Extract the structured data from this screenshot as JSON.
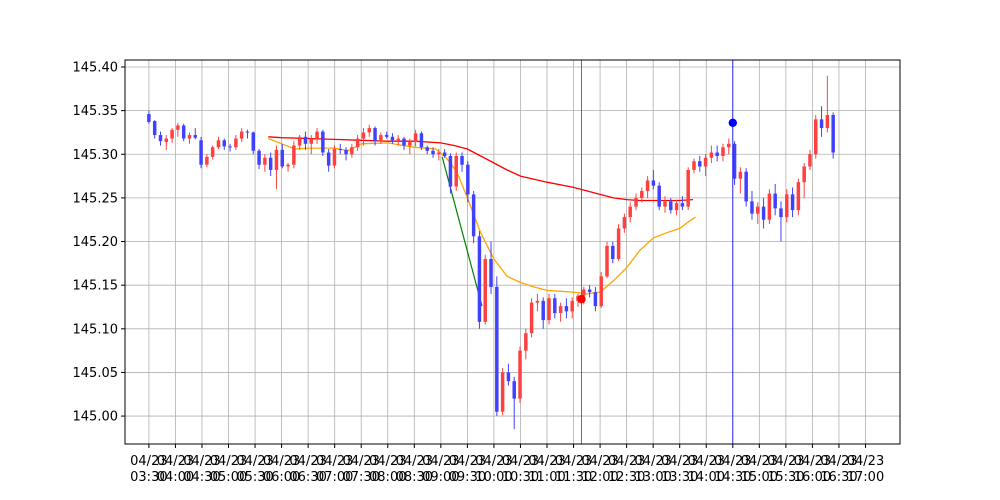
{
  "chart_data": {
    "type": "candlestick",
    "title": "",
    "xlabel": "",
    "ylabel": "",
    "grid": true,
    "ylim": [
      144.968,
      145.408
    ],
    "xlim": [
      -0.9,
      28.3
    ],
    "y_ticks": [
      {
        "value": 145.0,
        "label": "145.00"
      },
      {
        "value": 145.05,
        "label": "145.05"
      },
      {
        "value": 145.1,
        "label": "145.10"
      },
      {
        "value": 145.15,
        "label": "145.15"
      },
      {
        "value": 145.2,
        "label": "145.20"
      },
      {
        "value": 145.25,
        "label": "145.25"
      },
      {
        "value": 145.3,
        "label": "145.30"
      },
      {
        "value": 145.35,
        "label": "145.35"
      },
      {
        "value": 145.4,
        "label": "145.40"
      }
    ],
    "x_ticks": [
      {
        "date": "04/23",
        "time": "03:30"
      },
      {
        "date": "04/23",
        "time": "04:00"
      },
      {
        "date": "04/23",
        "time": "04:30"
      },
      {
        "date": "04/23",
        "time": "05:00"
      },
      {
        "date": "04/23",
        "time": "05:30"
      },
      {
        "date": "04/23",
        "time": "06:00"
      },
      {
        "date": "04/23",
        "time": "06:30"
      },
      {
        "date": "04/23",
        "time": "07:00"
      },
      {
        "date": "04/23",
        "time": "07:30"
      },
      {
        "date": "04/23",
        "time": "08:00"
      },
      {
        "date": "04/23",
        "time": "08:30"
      },
      {
        "date": "04/23",
        "time": "09:00"
      },
      {
        "date": "04/23",
        "time": "09:30"
      },
      {
        "date": "04/23",
        "time": "10:00"
      },
      {
        "date": "04/23",
        "time": "10:30"
      },
      {
        "date": "04/23",
        "time": "11:00"
      },
      {
        "date": "04/23",
        "time": "11:30"
      },
      {
        "date": "04/23",
        "time": "12:00"
      },
      {
        "date": "04/23",
        "time": "12:30"
      },
      {
        "date": "04/23",
        "time": "13:00"
      },
      {
        "date": "04/23",
        "time": "13:30"
      },
      {
        "date": "04/23",
        "time": "14:00"
      },
      {
        "date": "04/23",
        "time": "14:30"
      },
      {
        "date": "04/23",
        "time": "15:00"
      },
      {
        "date": "04/23",
        "time": "15:30"
      },
      {
        "date": "04/23",
        "time": "16:00"
      },
      {
        "date": "04/23",
        "time": "16:30"
      },
      {
        "date": "04/23",
        "time": "17:00"
      }
    ],
    "colors": {
      "up": "#ff4040",
      "down": "#4040ff",
      "ma_long": "#ff0000",
      "ma_short": "#ffa500",
      "trend": "#008000",
      "marker_red": "#ff0000",
      "marker_blue": "#0000ff",
      "vline_red": "#ff0000",
      "vline_blue": "#0000ff"
    },
    "candles": [
      [
        145.346,
        145.35,
        145.335,
        145.337
      ],
      [
        145.338,
        145.339,
        145.318,
        145.322
      ],
      [
        145.322,
        145.326,
        145.31,
        145.315
      ],
      [
        145.314,
        145.322,
        145.305,
        145.318
      ],
      [
        145.318,
        145.33,
        145.313,
        145.328
      ],
      [
        145.328,
        145.336,
        145.32,
        145.333
      ],
      [
        145.333,
        145.335,
        145.315,
        145.318
      ],
      [
        145.318,
        145.325,
        145.312,
        145.322
      ],
      [
        145.322,
        145.33,
        145.317,
        145.319
      ],
      [
        145.316,
        145.32,
        145.284,
        145.288
      ],
      [
        145.288,
        145.3,
        145.285,
        145.297
      ],
      [
        145.297,
        145.31,
        145.294,
        145.308
      ],
      [
        145.308,
        145.32,
        145.306,
        145.316
      ],
      [
        145.316,
        145.318,
        145.305,
        145.309
      ],
      [
        145.309,
        145.312,
        145.303,
        145.308
      ],
      [
        145.308,
        145.322,
        145.305,
        145.318
      ],
      [
        145.318,
        145.33,
        145.314,
        145.326
      ],
      [
        145.326,
        145.328,
        145.318,
        145.325
      ],
      [
        145.325,
        145.326,
        145.3,
        145.304
      ],
      [
        145.304,
        145.306,
        145.283,
        145.288
      ],
      [
        145.288,
        145.3,
        145.28,
        145.296
      ],
      [
        145.296,
        145.302,
        145.275,
        145.282
      ],
      [
        145.282,
        145.31,
        145.26,
        145.305
      ],
      [
        145.305,
        145.312,
        145.284,
        145.286
      ],
      [
        145.286,
        145.29,
        145.28,
        145.288
      ],
      [
        145.288,
        145.315,
        145.284,
        145.31
      ],
      [
        145.31,
        145.322,
        145.305,
        145.32
      ],
      [
        145.32,
        145.326,
        145.305,
        145.312
      ],
      [
        145.312,
        145.322,
        145.3,
        145.318
      ],
      [
        145.318,
        145.33,
        145.312,
        145.326
      ],
      [
        145.326,
        145.328,
        145.298,
        145.302
      ],
      [
        145.302,
        145.306,
        145.28,
        145.287
      ],
      [
        145.287,
        145.31,
        145.284,
        145.306
      ],
      [
        145.306,
        145.312,
        145.3,
        145.305
      ],
      [
        145.305,
        145.308,
        145.293,
        145.3
      ],
      [
        145.3,
        145.312,
        145.296,
        145.308
      ],
      [
        145.308,
        145.322,
        145.304,
        145.318
      ],
      [
        145.318,
        145.33,
        145.31,
        145.325
      ],
      [
        145.325,
        145.334,
        145.32,
        145.33
      ],
      [
        145.33,
        145.332,
        145.31,
        145.315
      ],
      [
        145.315,
        145.325,
        145.312,
        145.322
      ],
      [
        145.322,
        145.326,
        145.318,
        145.32
      ],
      [
        145.32,
        145.324,
        145.312,
        145.316
      ],
      [
        145.316,
        145.322,
        145.31,
        145.318
      ],
      [
        145.318,
        145.32,
        145.305,
        145.31
      ],
      [
        145.31,
        145.318,
        145.3,
        145.314
      ],
      [
        145.314,
        145.328,
        145.309,
        145.324
      ],
      [
        145.324,
        145.326,
        145.305,
        145.308
      ],
      [
        145.308,
        145.31,
        145.3,
        145.304
      ],
      [
        145.304,
        145.308,
        145.296,
        145.3
      ],
      [
        145.3,
        145.306,
        145.293,
        145.302
      ],
      [
        145.302,
        145.306,
        145.296,
        145.298
      ],
      [
        145.298,
        145.301,
        145.255,
        145.263
      ],
      [
        145.263,
        145.302,
        145.258,
        145.298
      ],
      [
        145.298,
        145.302,
        145.28,
        145.288
      ],
      [
        145.288,
        145.292,
        145.245,
        145.254
      ],
      [
        145.254,
        145.258,
        145.198,
        145.206
      ],
      [
        145.206,
        145.212,
        145.1,
        145.108
      ],
      [
        145.108,
        145.185,
        145.105,
        145.18
      ],
      [
        145.18,
        145.2,
        145.14,
        145.148
      ],
      [
        145.148,
        145.16,
        145.0,
        145.005
      ],
      [
        145.005,
        145.055,
        145.001,
        145.05
      ],
      [
        145.05,
        145.06,
        145.035,
        145.04
      ],
      [
        145.04,
        145.045,
        144.985,
        145.02
      ],
      [
        145.02,
        145.08,
        145.015,
        145.075
      ],
      [
        145.075,
        145.1,
        145.065,
        145.095
      ],
      [
        145.095,
        145.135,
        145.09,
        145.13
      ],
      [
        145.13,
        145.14,
        145.12,
        145.132
      ],
      [
        145.132,
        145.136,
        145.1,
        145.11
      ],
      [
        145.11,
        145.14,
        145.105,
        145.135
      ],
      [
        145.135,
        145.14,
        145.112,
        145.118
      ],
      [
        145.118,
        145.13,
        145.108,
        145.126
      ],
      [
        145.126,
        145.135,
        145.112,
        145.12
      ],
      [
        145.12,
        145.136,
        145.112,
        145.132
      ],
      [
        145.132,
        145.14,
        145.125,
        145.138
      ],
      [
        145.138,
        145.148,
        145.128,
        145.145
      ],
      [
        145.145,
        145.15,
        145.136,
        145.142
      ],
      [
        145.142,
        145.148,
        145.12,
        145.126
      ],
      [
        145.126,
        145.165,
        145.124,
        145.16
      ],
      [
        145.16,
        145.2,
        145.158,
        145.195
      ],
      [
        145.195,
        145.2,
        145.175,
        145.18
      ],
      [
        145.18,
        145.22,
        145.178,
        145.215
      ],
      [
        145.215,
        145.232,
        145.21,
        145.228
      ],
      [
        145.228,
        145.245,
        145.222,
        145.24
      ],
      [
        145.24,
        145.255,
        145.236,
        145.25
      ],
      [
        145.25,
        145.262,
        145.245,
        145.258
      ],
      [
        145.258,
        145.275,
        145.25,
        145.27
      ],
      [
        145.27,
        145.282,
        145.26,
        145.264
      ],
      [
        145.264,
        145.268,
        145.236,
        145.24
      ],
      [
        145.24,
        145.252,
        145.233,
        145.246
      ],
      [
        145.246,
        145.25,
        145.232,
        145.236
      ],
      [
        145.236,
        145.248,
        145.23,
        145.244
      ],
      [
        145.244,
        145.252,
        145.236,
        145.24
      ],
      [
        145.24,
        145.285,
        145.236,
        145.282
      ],
      [
        145.282,
        145.295,
        145.278,
        145.292
      ],
      [
        145.292,
        145.298,
        145.28,
        145.286
      ],
      [
        145.286,
        145.3,
        145.275,
        145.296
      ],
      [
        145.296,
        145.31,
        145.29,
        145.302
      ],
      [
        145.302,
        145.31,
        145.292,
        145.298
      ],
      [
        145.298,
        145.312,
        145.292,
        145.308
      ],
      [
        145.308,
        145.318,
        145.3,
        145.312
      ],
      [
        145.312,
        145.315,
        145.265,
        145.272
      ],
      [
        145.272,
        145.285,
        145.255,
        145.28
      ],
      [
        145.28,
        145.284,
        145.24,
        145.246
      ],
      [
        145.246,
        145.258,
        145.225,
        145.232
      ],
      [
        145.232,
        145.245,
        145.22,
        145.24
      ],
      [
        145.24,
        145.25,
        145.215,
        145.225
      ],
      [
        145.225,
        145.26,
        145.22,
        145.255
      ],
      [
        145.255,
        145.266,
        145.23,
        145.238
      ],
      [
        145.238,
        145.246,
        145.2,
        145.228
      ],
      [
        145.228,
        145.26,
        145.222,
        145.254
      ],
      [
        145.254,
        145.262,
        145.228,
        145.236
      ],
      [
        145.236,
        145.272,
        145.23,
        145.268
      ],
      [
        145.268,
        145.29,
        145.25,
        145.286
      ],
      [
        145.286,
        145.305,
        145.282,
        145.3
      ],
      [
        145.3,
        145.345,
        145.295,
        145.34
      ],
      [
        145.34,
        145.355,
        145.32,
        145.33
      ],
      [
        145.33,
        145.39,
        145.325,
        145.345
      ],
      [
        145.345,
        145.348,
        145.295,
        145.302
      ]
    ],
    "ma_long": [
      [
        4.5,
        145.32
      ],
      [
        5.0,
        145.319
      ],
      [
        6.0,
        145.318
      ],
      [
        7.0,
        145.317
      ],
      [
        8.0,
        145.316
      ],
      [
        9.0,
        145.315
      ],
      [
        10.0,
        145.315
      ],
      [
        11.0,
        145.313
      ],
      [
        11.5,
        145.31
      ],
      [
        12.0,
        145.306
      ],
      [
        12.5,
        145.298
      ],
      [
        13.0,
        145.29
      ],
      [
        13.5,
        145.282
      ],
      [
        14.0,
        145.275
      ],
      [
        15.0,
        145.268
      ],
      [
        16.0,
        145.262
      ],
      [
        16.5,
        145.258
      ],
      [
        17.0,
        145.254
      ],
      [
        17.5,
        145.25
      ],
      [
        18.0,
        145.248
      ],
      [
        18.5,
        145.247
      ],
      [
        19.0,
        145.247
      ],
      [
        20.0,
        145.247
      ],
      [
        20.5,
        145.248
      ]
    ],
    "ma_short": [
      [
        4.5,
        145.318
      ],
      [
        5.0,
        145.312
      ],
      [
        5.5,
        145.306
      ],
      [
        6.0,
        145.307
      ],
      [
        7.0,
        145.307
      ],
      [
        7.5,
        145.304
      ],
      [
        8.0,
        145.312
      ],
      [
        9.0,
        145.313
      ],
      [
        10.0,
        145.308
      ],
      [
        10.8,
        145.306
      ],
      [
        11.2,
        145.296
      ],
      [
        11.6,
        145.28
      ],
      [
        12.0,
        145.25
      ],
      [
        12.5,
        145.21
      ],
      [
        13.0,
        145.18
      ],
      [
        13.5,
        145.16
      ],
      [
        14.0,
        145.153
      ],
      [
        14.5,
        145.148
      ],
      [
        15.0,
        145.144
      ],
      [
        15.5,
        145.143
      ],
      [
        16.0,
        145.142
      ],
      [
        16.5,
        145.14
      ],
      [
        17.0,
        145.142
      ],
      [
        17.5,
        145.155
      ],
      [
        18.0,
        145.17
      ],
      [
        18.5,
        145.19
      ],
      [
        19.0,
        145.204
      ],
      [
        19.5,
        145.21
      ],
      [
        20.0,
        145.215
      ],
      [
        20.3,
        145.222
      ],
      [
        20.6,
        145.228
      ]
    ],
    "trend_line": [
      [
        11.05,
        145.297
      ],
      [
        12.55,
        145.126
      ]
    ],
    "markers": [
      {
        "x": 16.3,
        "y": 145.134,
        "color": "red"
      },
      {
        "x": 22.0,
        "y": 145.336,
        "color": "blue"
      }
    ],
    "vertical_lines": [
      {
        "x": 16.3,
        "color": "red"
      },
      {
        "x": 22.0,
        "color": "blue"
      }
    ]
  }
}
